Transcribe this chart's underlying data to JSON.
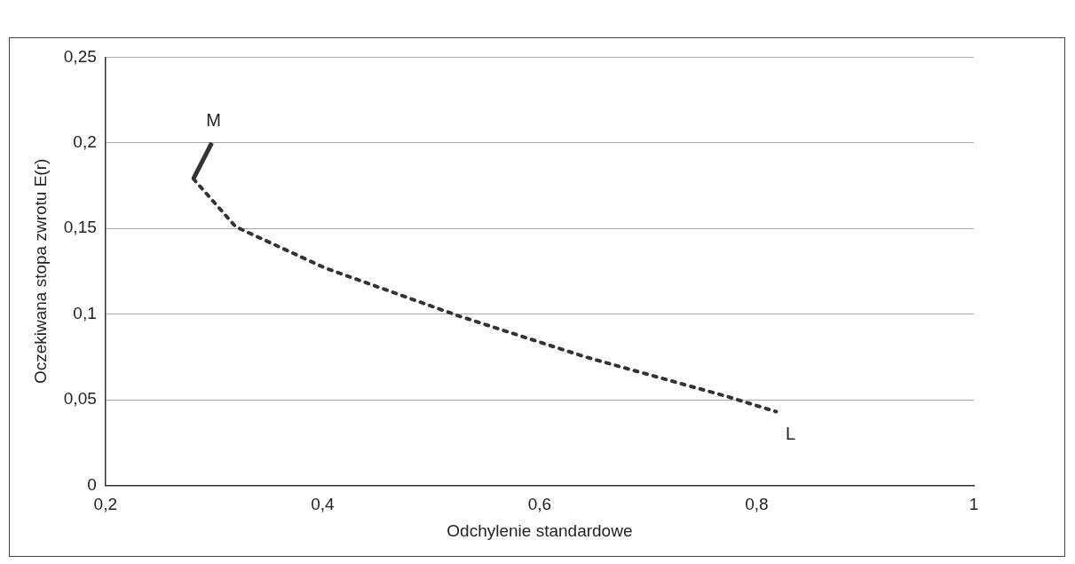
{
  "chart_data": {
    "type": "line",
    "xlabel": "Odchylenie standardowe",
    "ylabel": "Oczekiwana stopa zwrotu E(r)",
    "xlim": [
      0.2,
      1
    ],
    "xticks": [
      {
        "value": 0.2,
        "label": "0,2"
      },
      {
        "value": 0.4,
        "label": "0,4"
      },
      {
        "value": 0.6,
        "label": "0,6"
      },
      {
        "value": 0.8,
        "label": "0,8"
      },
      {
        "value": 1,
        "label": "1"
      }
    ],
    "ylim": [
      0,
      0.25
    ],
    "yticks": [
      {
        "value": 0,
        "label": "0"
      },
      {
        "value": 0.05,
        "label": "0,05"
      },
      {
        "value": 0.1,
        "label": "0,1"
      },
      {
        "value": 0.15,
        "label": "0,15"
      },
      {
        "value": 0.2,
        "label": "0,2"
      },
      {
        "value": 0.25,
        "label": "0,25"
      }
    ],
    "grid": "y",
    "legend": false,
    "marker": "none",
    "series": [
      {
        "color": "#333333",
        "line_style": "solid",
        "x": [
          0.281,
          0.298
        ],
        "values": [
          0.179,
          0.2
        ]
      },
      {
        "color": "#333333",
        "line_style": "dotted",
        "x": [
          0.281,
          0.32,
          0.402,
          0.525,
          0.642,
          0.772,
          0.818
        ],
        "values": [
          0.179,
          0.151,
          0.127,
          0.099,
          0.075,
          0.052,
          0.043
        ]
      }
    ],
    "annotations": [
      {
        "text": "M",
        "x": 0.298,
        "y": 0.2
      },
      {
        "text": "L",
        "x": 0.818,
        "y": 0.043
      }
    ]
  }
}
